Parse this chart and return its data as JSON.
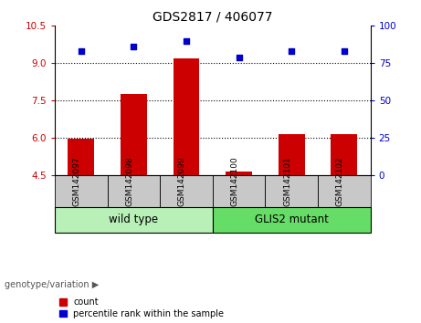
{
  "title": "GDS2817 / 406077",
  "categories": [
    "GSM142097",
    "GSM142098",
    "GSM142099",
    "GSM142100",
    "GSM142101",
    "GSM142102"
  ],
  "bar_values": [
    5.95,
    7.75,
    9.2,
    4.65,
    6.15,
    6.15
  ],
  "scatter_values": [
    83,
    86,
    90,
    79,
    83,
    83
  ],
  "ylim_left": [
    4.5,
    10.5
  ],
  "ylim_right": [
    0,
    100
  ],
  "yticks_left": [
    4.5,
    6.0,
    7.5,
    9.0,
    10.5
  ],
  "yticks_right": [
    0,
    25,
    50,
    75,
    100
  ],
  "hlines": [
    6.0,
    7.5,
    9.0
  ],
  "bar_color": "#cc0000",
  "scatter_color": "#0000cc",
  "group_labels": [
    "wild type",
    "GLIS2 mutant"
  ],
  "group_ranges": [
    [
      0,
      3
    ],
    [
      3,
      6
    ]
  ],
  "group_colors_light": [
    "#b8f0b8",
    "#66dd66"
  ],
  "label_left_color": "#cc0000",
  "label_right_color": "#0000cc",
  "legend_count_label": "count",
  "legend_percentile_label": "percentile rank within the sample",
  "xlabel_group": "genotype/variation",
  "gray_color": "#c8c8c8",
  "title_fontsize": 10,
  "tick_fontsize": 7.5,
  "category_fontsize": 6.5,
  "group_fontsize": 8.5,
  "legend_fontsize": 7
}
